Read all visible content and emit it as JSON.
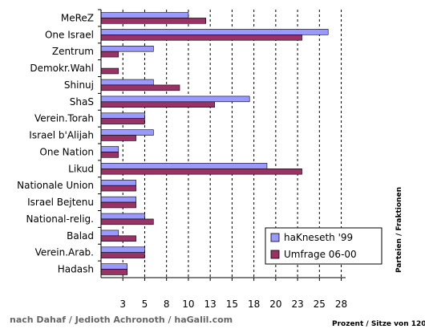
{
  "chart_data": {
    "type": "bar",
    "orientation": "horizontal",
    "categories": [
      "MeReZ",
      "One Israel",
      "Zentrum",
      "Demokr.Wahl",
      "Shinuj",
      "ShaS",
      "Verein.Torah",
      "Israel b'Alijah",
      "One Nation",
      "Likud",
      "Nationale Union",
      "Israel Bejtenu",
      "National-relig.",
      "Balad",
      "Verein.Arab.",
      "Hadash"
    ],
    "series": [
      {
        "name": "haKneseth '99",
        "color": "#9999ff",
        "values": [
          10,
          26,
          6,
          0,
          6,
          17,
          5,
          6,
          2,
          19,
          4,
          4,
          5,
          2,
          5,
          3
        ]
      },
      {
        "name": "Umfrage 06-00",
        "color": "#993366",
        "values": [
          12,
          23,
          2,
          2,
          9,
          13,
          5,
          4,
          2,
          23,
          4,
          4,
          6,
          4,
          5,
          3
        ]
      }
    ],
    "xlim": [
      0,
      28
    ],
    "xtick_values": [
      2.5,
      5,
      7.5,
      10,
      12.5,
      15,
      17.5,
      20,
      22.5,
      25,
      27.5
    ],
    "xtick_labels": [
      "3",
      "5",
      "8",
      "10",
      "13",
      "15",
      "18",
      "20",
      "23",
      "25",
      "28"
    ],
    "grid": "vertical",
    "legend_position": "bottom-right",
    "xlabel": "Prozent / Sitze von 120",
    "ylabel": "Parteien / Fraktionen"
  },
  "source": "nach Dahaf / Jedioth Achronoth / haGalil.com"
}
